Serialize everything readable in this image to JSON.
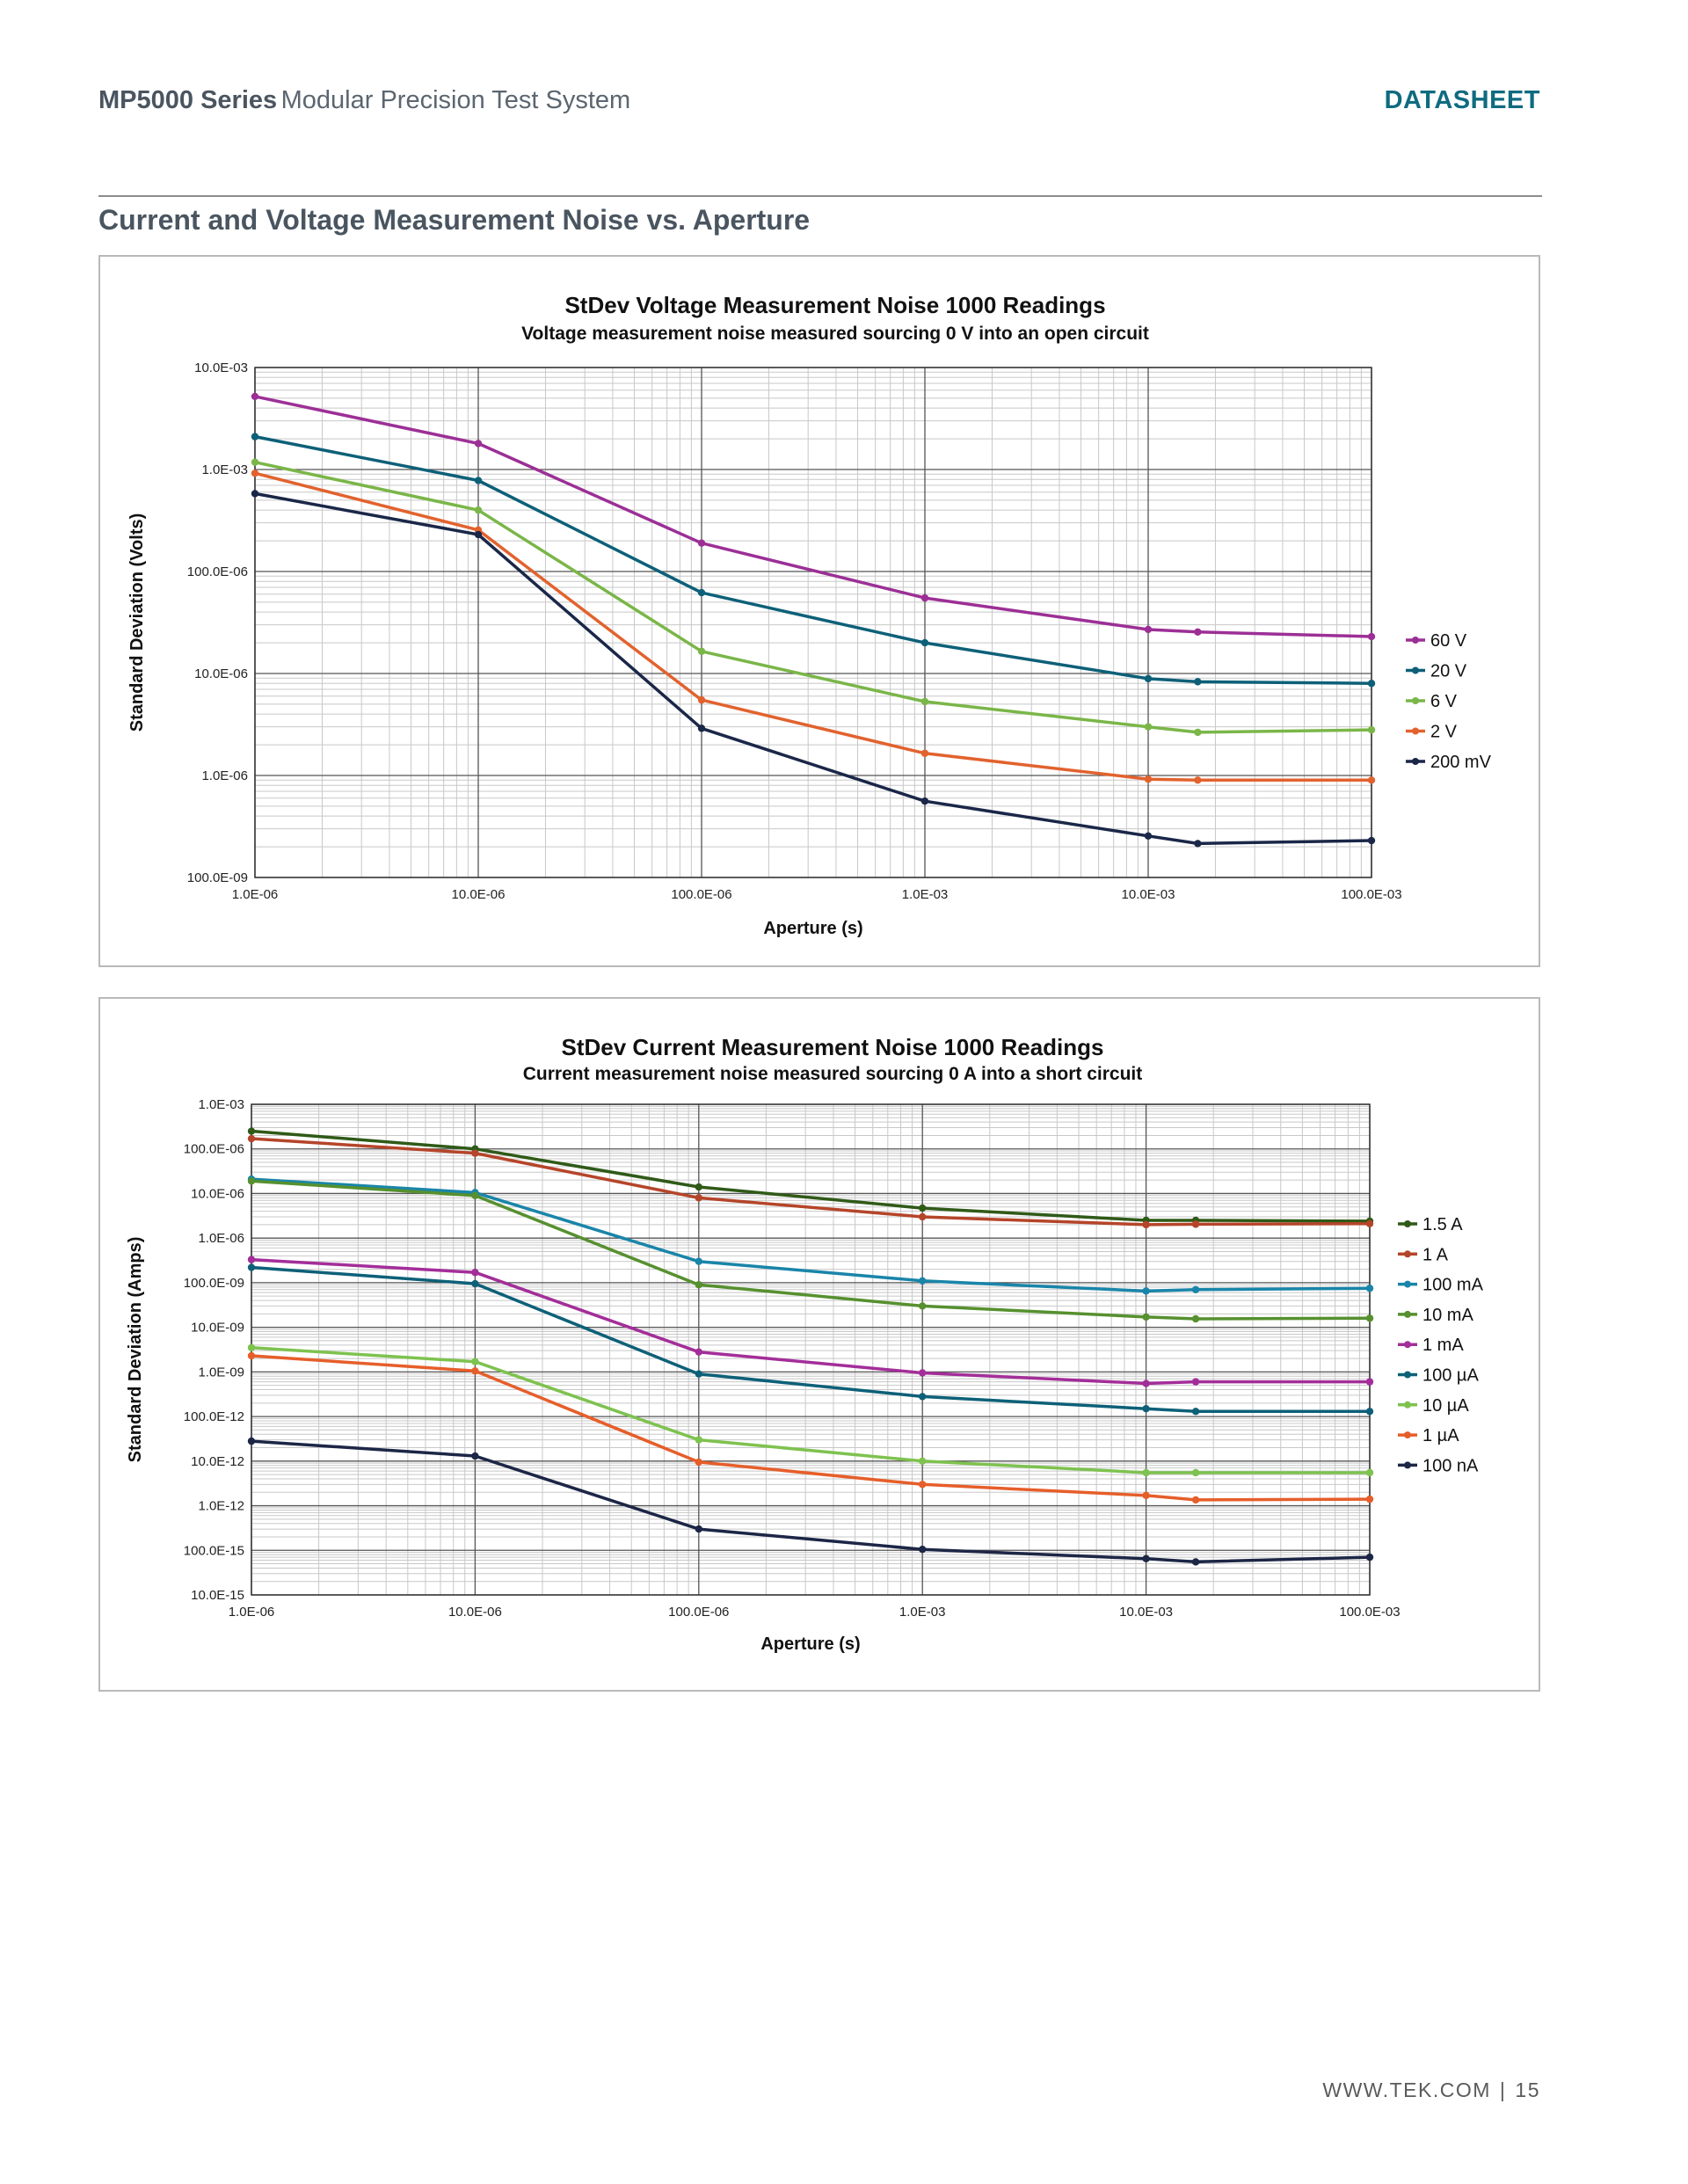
{
  "header": {
    "series_bold": "MP5000 Series",
    "series_rest": "Modular Precision Test System",
    "doc_type": "DATASHEET"
  },
  "section": {
    "title": "Current and Voltage Measurement Noise vs. Aperture"
  },
  "footer": {
    "site": "WWW.TEK.COM",
    "page": "15"
  },
  "colors": {
    "accent": "#0f6b80",
    "grid_major": "#555555",
    "grid_minor": "#c8c8c8"
  },
  "chart_data": [
    {
      "id": "voltage",
      "type": "line",
      "title": "StDev Voltage Measurement Noise 1000 Readings",
      "subtitle": "Voltage measurement noise measured sourcing 0 V into an open circuit",
      "xlabel": "Aperture (s)",
      "ylabel": "Standard Deviation (Volts)",
      "xscale": "log",
      "yscale": "log",
      "xlim": [
        1e-06,
        0.1
      ],
      "ylim": [
        1e-07,
        0.01
      ],
      "grid": true,
      "legend": "right",
      "x_ticks": [
        1e-06,
        1e-05,
        0.0001,
        0.001,
        0.01,
        0.1
      ],
      "x_tick_labels": [
        "1.0E-06",
        "10.0E-06",
        "100.0E-06",
        "1.0E-03",
        "10.0E-03",
        "100.0E-03"
      ],
      "y_ticks": [
        0.01,
        0.001,
        0.0001,
        1e-05,
        1e-06,
        1e-07
      ],
      "y_tick_labels": [
        "10.0E-03",
        "1.0E-03",
        "100.0E-06",
        "10.0E-06",
        "1.0E-06",
        "100.0E-09"
      ],
      "x": [
        1e-06,
        1e-05,
        0.0001,
        0.001,
        0.01,
        0.01667,
        0.1
      ],
      "series": [
        {
          "name": "60 V",
          "color": "#9c2f96",
          "values": [
            0.0052,
            0.0018,
            0.00019,
            5.5e-05,
            2.7e-05,
            2.55e-05,
            2.3e-05
          ]
        },
        {
          "name": "20 V",
          "color": "#0d6078",
          "values": [
            0.0021,
            0.00078,
            6.2e-05,
            2e-05,
            8.9e-06,
            8.3e-06,
            8e-06
          ]
        },
        {
          "name": "6 V",
          "color": "#7ab648",
          "values": [
            0.00118,
            0.0004,
            1.65e-05,
            5.3e-06,
            3e-06,
            2.65e-06,
            2.8e-06
          ]
        },
        {
          "name": "2 V",
          "color": "#e2622e",
          "values": [
            0.00092,
            0.000255,
            5.5e-06,
            1.65e-06,
            9.2e-07,
            9e-07,
            9e-07
          ]
        },
        {
          "name": "200 mV",
          "color": "#1a2748",
          "values": [
            0.00058,
            0.00023,
            2.9e-06,
            5.6e-07,
            2.55e-07,
            2.15e-07,
            2.3e-07
          ]
        }
      ]
    },
    {
      "id": "current",
      "type": "line",
      "title": "StDev Current Measurement Noise 1000 Readings",
      "subtitle": "Current measurement noise measured sourcing 0 A into a short circuit",
      "xlabel": "Aperture (s)",
      "ylabel": "Standard Deviation (Amps)",
      "xscale": "log",
      "yscale": "log",
      "xlim": [
        1e-06,
        0.1
      ],
      "ylim": [
        1e-14,
        0.001
      ],
      "grid": true,
      "legend": "right",
      "x_ticks": [
        1e-06,
        1e-05,
        0.0001,
        0.001,
        0.01,
        0.1
      ],
      "x_tick_labels": [
        "1.0E-06",
        "10.0E-06",
        "100.0E-06",
        "1.0E-03",
        "10.0E-03",
        "100.0E-03"
      ],
      "y_ticks": [
        0.001,
        0.0001,
        1e-05,
        1e-06,
        1e-07,
        1e-08,
        1e-09,
        1e-10,
        1e-11,
        1e-12,
        1e-13,
        1e-14
      ],
      "y_tick_labels": [
        "1.0E-03",
        "100.0E-06",
        "10.0E-06",
        "1.0E-06",
        "100.0E-09",
        "10.0E-09",
        "1.0E-09",
        "100.0E-12",
        "10.0E-12",
        "1.0E-12",
        "100.0E-15",
        "10.0E-15"
      ],
      "x": [
        1e-06,
        1e-05,
        0.0001,
        0.001,
        0.01,
        0.01667,
        0.1
      ],
      "series": [
        {
          "name": "1.5 A",
          "color": "#2f5a17",
          "values": [
            0.00025,
            0.0001,
            1.4e-05,
            4.7e-06,
            2.5e-06,
            2.5e-06,
            2.4e-06
          ]
        },
        {
          "name": "1 A",
          "color": "#b5452a",
          "values": [
            0.00017,
            8e-05,
            8e-06,
            3e-06,
            2e-06,
            2.05e-06,
            2.1e-06
          ]
        },
        {
          "name": "100 mA",
          "color": "#1985a9",
          "values": [
            2.1e-05,
            1.05e-05,
            3e-07,
            1.1e-07,
            6.5e-08,
            7e-08,
            7.5e-08
          ]
        },
        {
          "name": "10 mA",
          "color": "#56902f",
          "values": [
            1.9e-05,
            9e-06,
            9e-08,
            3e-08,
            1.7e-08,
            1.55e-08,
            1.6e-08
          ]
        },
        {
          "name": "1 mA",
          "color": "#a32e99",
          "values": [
            3.3e-07,
            1.7e-07,
            2.8e-09,
            9.5e-10,
            5.5e-10,
            6e-10,
            6e-10
          ]
        },
        {
          "name": "100 µA",
          "color": "#0d6078",
          "values": [
            2.2e-07,
            9.5e-08,
            9e-10,
            2.8e-10,
            1.5e-10,
            1.3e-10,
            1.3e-10
          ]
        },
        {
          "name": "10 µA",
          "color": "#7ec24f",
          "values": [
            3.5e-09,
            1.7e-09,
            3e-11,
            1e-11,
            5.5e-12,
            5.5e-12,
            5.5e-12
          ]
        },
        {
          "name": "1 µA",
          "color": "#e65e2a",
          "values": [
            2.3e-09,
            1.05e-09,
            9.5e-12,
            3e-12,
            1.7e-12,
            1.35e-12,
            1.4e-12
          ]
        },
        {
          "name": "100 nA",
          "color": "#1c2646",
          "values": [
            2.8e-11,
            1.3e-11,
            3e-13,
            1.05e-13,
            6.5e-14,
            5.5e-14,
            7e-14
          ]
        }
      ]
    }
  ]
}
